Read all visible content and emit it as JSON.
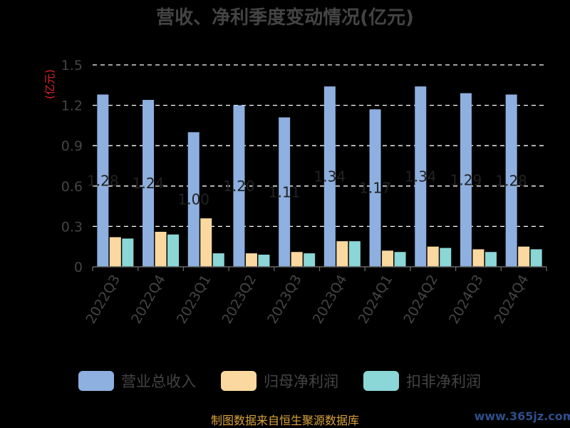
{
  "chart_data": {
    "type": "bar",
    "title": "营收、净利季度变动情况(亿元)",
    "ylabel": "(亿元)",
    "ylim": [
      0,
      1.5
    ],
    "yticks": [
      "0",
      "0.3",
      "0.6",
      "0.9",
      "1.2",
      "1.5"
    ],
    "grid": true,
    "legend_position": "bottom",
    "categories": [
      "2022Q3",
      "2022Q4",
      "2023Q1",
      "2023Q2",
      "2023Q3",
      "2023Q4",
      "2024Q1",
      "2024Q2",
      "2024Q3",
      "2024Q4"
    ],
    "series": [
      {
        "name": "营业总收入",
        "color": "#8eb0e0",
        "values": [
          1.28,
          1.24,
          1.0,
          1.2,
          1.11,
          1.34,
          1.17,
          1.34,
          1.29,
          1.28
        ],
        "labels": [
          "1.28",
          "1.24",
          "1.00",
          "1.20",
          "1.11",
          "1.34",
          "1.17",
          "1.34",
          "1.29",
          "1.28"
        ]
      },
      {
        "name": "归母净利润",
        "color": "#fbd89f",
        "values": [
          0.22,
          0.26,
          0.36,
          0.1,
          0.11,
          0.19,
          0.12,
          0.15,
          0.13,
          0.15
        ]
      },
      {
        "name": "扣非净利润",
        "color": "#8bd6d6",
        "values": [
          0.21,
          0.24,
          0.1,
          0.09,
          0.1,
          0.19,
          0.11,
          0.14,
          0.11,
          0.13
        ]
      }
    ]
  },
  "source": "制图数据来自恒生聚源数据库",
  "watermark": "www.365jz.com"
}
